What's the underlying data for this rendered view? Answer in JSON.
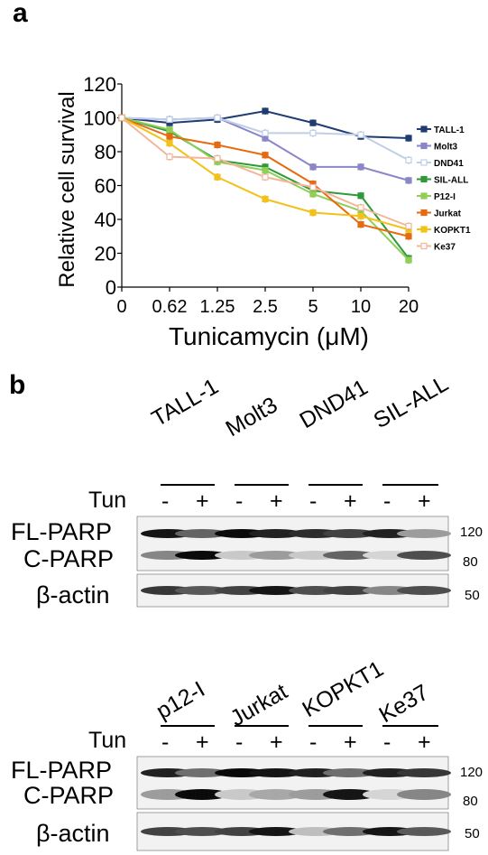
{
  "panel_a": {
    "letter": "a"
  },
  "panel_b": {
    "letter": "b"
  },
  "chart_data": {
    "type": "line",
    "ylabel": "Relative cell survival",
    "xlabel": "Tunicamycin (μM)",
    "categories": [
      "0",
      "0.62",
      "1.25",
      "2.5",
      "5",
      "10",
      "20"
    ],
    "ylim": [
      0,
      120
    ],
    "yticks": [
      0,
      20,
      40,
      60,
      80,
      100,
      120
    ],
    "legend_position": "right",
    "series": [
      {
        "name": "TALL-1",
        "color": "#1f3c73",
        "marker": "square-filled",
        "values": [
          100,
          97,
          99,
          104,
          97,
          89,
          88
        ]
      },
      {
        "name": "Molt3",
        "color": "#8a86c8",
        "marker": "square-filled",
        "values": [
          100,
          99,
          100,
          88,
          71,
          71,
          63
        ]
      },
      {
        "name": "DND41",
        "color": "#bfcfe8",
        "marker": "square-open",
        "values": [
          100,
          99,
          100,
          91,
          91,
          90,
          75
        ]
      },
      {
        "name": "SIL-ALL",
        "color": "#2e9a3a",
        "marker": "square-filled",
        "values": [
          100,
          92,
          75,
          71,
          57,
          54,
          17
        ]
      },
      {
        "name": "P12-I",
        "color": "#8fcf57",
        "marker": "square-filled",
        "values": [
          100,
          93,
          74,
          69,
          55,
          45,
          16
        ]
      },
      {
        "name": "Jurkat",
        "color": "#e66b10",
        "marker": "square-filled",
        "values": [
          100,
          89,
          84,
          78,
          61,
          37,
          30
        ]
      },
      {
        "name": "KOPKT1",
        "color": "#f2c218",
        "marker": "square-filled",
        "values": [
          100,
          85,
          65,
          52,
          44,
          42,
          34
        ]
      },
      {
        "name": "Ke37",
        "color": "#f5b59a",
        "marker": "square-open",
        "values": [
          100,
          77,
          76,
          65,
          59,
          47,
          36
        ]
      }
    ]
  },
  "blot_top": {
    "cell_lines": [
      "TALL-1",
      "Molt3",
      "DND41",
      "SIL-ALL"
    ],
    "treatment_label": "Tun",
    "treatment_signs": [
      "-",
      "+",
      "-",
      "+",
      "-",
      "+",
      "-",
      "+"
    ],
    "labels": {
      "fl": "FL-PARP",
      "c": "C-PARP",
      "actin": "β-actin"
    },
    "mw": {
      "m120": "120",
      "m80": "80",
      "m50": "50"
    }
  },
  "blot_bottom": {
    "cell_lines": [
      "p12-I",
      "Jurkat",
      "KOPKT1",
      "Ke37"
    ],
    "treatment_label": "Tun",
    "treatment_signs": [
      "-",
      "+",
      "-",
      "+",
      "-",
      "+",
      "-",
      "+"
    ],
    "labels": {
      "fl": "FL-PARP",
      "c": "C-PARP",
      "actin": "β-actin"
    },
    "mw": {
      "m120": "120",
      "m80": "80",
      "m50": "50"
    }
  }
}
